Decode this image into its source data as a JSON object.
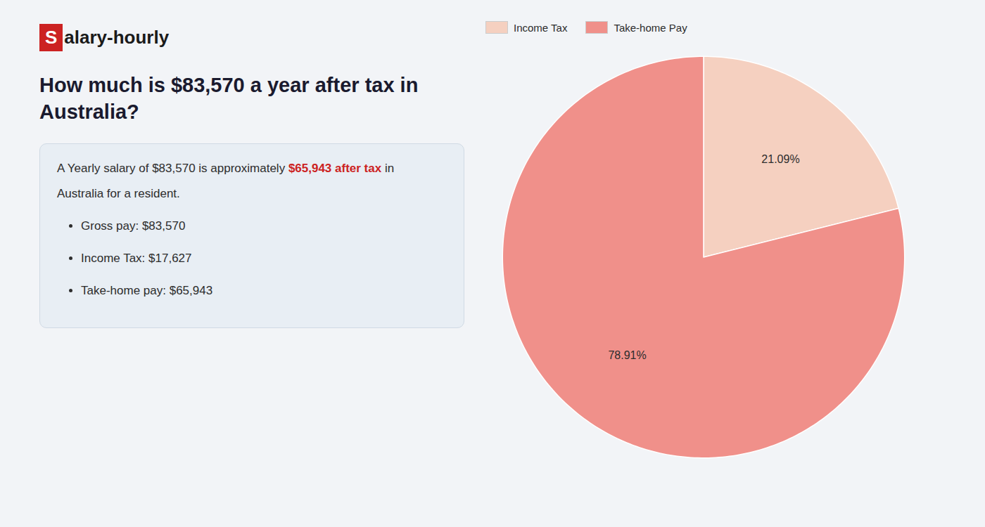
{
  "chart_data": {
    "type": "pie",
    "title": "How much is $83,570 a year after tax in Australia?",
    "logo": {
      "box_text": "S",
      "text": "alary-hourly",
      "color": "#cc2222"
    },
    "summary": [
      [
        {
          "text": "A Yearly salary of $83,570 is approximately "
        },
        {
          "text": "$65,943 after tax",
          "color": "#cc2222"
        },
        {
          "text": " in"
        }
      ],
      [
        {
          "text": "Australia for a resident."
        }
      ]
    ],
    "bullets": [
      "Gross pay: $83,570",
      "Income Tax: $17,627",
      "Take-home pay: $65,943"
    ],
    "categories": [
      "Income Tax",
      "Take-home Pay"
    ],
    "values": [
      21.09,
      78.91
    ],
    "value_labels": [
      "21.09%",
      "78.91%"
    ],
    "colors": [
      "#f5d0c0",
      "#f0908a"
    ],
    "data_labels": true,
    "legend": "top left"
  }
}
